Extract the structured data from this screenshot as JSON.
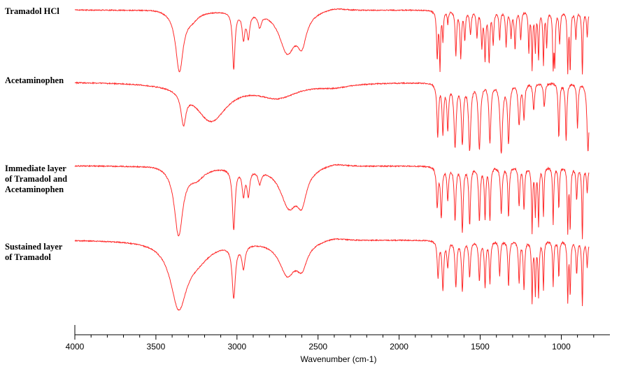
{
  "chart_data": {
    "type": "line",
    "title": "",
    "xlabel": "Wavenumber (cm-1)",
    "ylabel": "",
    "xlim": [
      4000,
      700
    ],
    "x_reversed": true,
    "grid": false,
    "line_color": "#ff2a2a",
    "x_ticks_major": [
      4000,
      3500,
      3000,
      2500,
      2000,
      1500,
      1000
    ],
    "x_tick_labels": [
      "4000",
      "3500",
      "3000",
      "2500",
      "2000",
      "1500",
      "1000"
    ],
    "series": [
      {
        "name": "Tramadol HCl",
        "label_lines": [
          "Tramadol HCl"
        ],
        "x_range": [
          4000,
          830
        ],
        "features": [
          [
            3800,
            0.0,
            40
          ],
          [
            3500,
            -0.02,
            80
          ],
          [
            3355,
            0.95,
            28
          ],
          [
            3280,
            0.12,
            50
          ],
          [
            3020,
            0.9,
            9
          ],
          [
            2960,
            0.4,
            10
          ],
          [
            2930,
            0.38,
            10
          ],
          [
            2860,
            0.2,
            12
          ],
          [
            2690,
            0.65,
            60
          ],
          [
            2600,
            0.45,
            35
          ],
          [
            2400,
            -0.05,
            90
          ],
          [
            1765,
            0.75,
            5
          ],
          [
            1748,
            0.9,
            4
          ],
          [
            1730,
            0.45,
            4
          ],
          [
            1700,
            0.2,
            4
          ],
          [
            1650,
            0.7,
            5
          ],
          [
            1620,
            0.75,
            5
          ],
          [
            1595,
            0.45,
            5
          ],
          [
            1560,
            0.35,
            6
          ],
          [
            1520,
            0.4,
            5
          ],
          [
            1490,
            0.55,
            5
          ],
          [
            1470,
            0.75,
            5
          ],
          [
            1445,
            0.8,
            5
          ],
          [
            1420,
            0.5,
            5
          ],
          [
            1380,
            0.45,
            5
          ],
          [
            1340,
            0.55,
            5
          ],
          [
            1310,
            0.4,
            5
          ],
          [
            1285,
            0.6,
            5
          ],
          [
            1250,
            0.45,
            5
          ],
          [
            1200,
            0.65,
            4
          ],
          [
            1180,
            0.9,
            4
          ],
          [
            1160,
            0.6,
            4
          ],
          [
            1140,
            0.75,
            4
          ],
          [
            1110,
            0.85,
            4
          ],
          [
            1090,
            0.55,
            4
          ],
          [
            1050,
            0.85,
            4
          ],
          [
            1040,
            0.8,
            4
          ],
          [
            1010,
            0.5,
            5
          ],
          [
            960,
            0.95,
            4
          ],
          [
            945,
            0.92,
            4
          ],
          [
            910,
            0.45,
            5
          ],
          [
            870,
            1.0,
            4
          ],
          [
            840,
            0.4,
            5
          ]
        ]
      },
      {
        "name": "Acetaminophen",
        "label_lines": [
          "Acetaminophen"
        ],
        "x_range": [
          4000,
          830
        ],
        "features": [
          [
            3330,
            0.45,
            18
          ],
          [
            3160,
            0.55,
            120
          ],
          [
            2750,
            0.2,
            150
          ],
          [
            2400,
            0.05,
            120
          ],
          [
            1762,
            0.75,
            6
          ],
          [
            1730,
            0.7,
            6
          ],
          [
            1700,
            0.65,
            6
          ],
          [
            1655,
            0.9,
            8
          ],
          [
            1610,
            0.85,
            7
          ],
          [
            1565,
            0.95,
            8
          ],
          [
            1505,
            0.95,
            8
          ],
          [
            1440,
            0.85,
            7
          ],
          [
            1370,
            1.0,
            9
          ],
          [
            1325,
            0.85,
            7
          ],
          [
            1260,
            0.6,
            7
          ],
          [
            1230,
            0.5,
            6
          ],
          [
            1170,
            0.4,
            6
          ],
          [
            1105,
            0.35,
            6
          ],
          [
            1015,
            0.8,
            5
          ],
          [
            970,
            0.85,
            5
          ],
          [
            900,
            0.65,
            5
          ],
          [
            835,
            1.0,
            8
          ]
        ]
      },
      {
        "name": "Immediate layer of Tramadol and Acetaminophen",
        "label_lines": [
          "Immediate layer",
          "of Tramadol and",
          "Acetaminophen"
        ],
        "x_range": [
          4000,
          830
        ],
        "features": [
          [
            3800,
            0.0,
            40
          ],
          [
            3500,
            -0.02,
            80
          ],
          [
            3360,
            0.95,
            32
          ],
          [
            3250,
            0.15,
            60
          ],
          [
            3020,
            0.85,
            10
          ],
          [
            2960,
            0.35,
            10
          ],
          [
            2930,
            0.35,
            10
          ],
          [
            2860,
            0.18,
            12
          ],
          [
            2680,
            0.55,
            65
          ],
          [
            2600,
            0.4,
            35
          ],
          [
            2400,
            -0.05,
            90
          ],
          [
            1765,
            0.55,
            6
          ],
          [
            1740,
            0.7,
            6
          ],
          [
            1700,
            0.45,
            6
          ],
          [
            1655,
            0.75,
            6
          ],
          [
            1610,
            0.9,
            6
          ],
          [
            1565,
            0.8,
            6
          ],
          [
            1505,
            0.75,
            6
          ],
          [
            1470,
            0.7,
            5
          ],
          [
            1440,
            0.75,
            5
          ],
          [
            1370,
            0.65,
            6
          ],
          [
            1325,
            0.7,
            5
          ],
          [
            1260,
            0.55,
            5
          ],
          [
            1230,
            0.6,
            5
          ],
          [
            1180,
            0.9,
            4
          ],
          [
            1160,
            0.65,
            4
          ],
          [
            1140,
            0.8,
            4
          ],
          [
            1110,
            0.7,
            4
          ],
          [
            1050,
            0.8,
            4
          ],
          [
            1015,
            0.6,
            4
          ],
          [
            960,
            0.9,
            4
          ],
          [
            945,
            0.85,
            4
          ],
          [
            905,
            0.45,
            5
          ],
          [
            870,
            1.0,
            4
          ],
          [
            840,
            0.35,
            5
          ]
        ]
      },
      {
        "name": "Sustained layer of Tramadol",
        "label_lines": [
          "Sustained layer",
          "of Tramadol"
        ],
        "x_range": [
          4000,
          830
        ],
        "features": [
          [
            3360,
            0.95,
            60
          ],
          [
            3250,
            0.25,
            110
          ],
          [
            3020,
            0.8,
            12
          ],
          [
            2960,
            0.35,
            12
          ],
          [
            2690,
            0.5,
            60
          ],
          [
            2600,
            0.35,
            40
          ],
          [
            2400,
            -0.05,
            90
          ],
          [
            1760,
            0.55,
            6
          ],
          [
            1730,
            0.75,
            6
          ],
          [
            1700,
            0.4,
            6
          ],
          [
            1650,
            0.7,
            6
          ],
          [
            1610,
            0.75,
            6
          ],
          [
            1565,
            0.55,
            6
          ],
          [
            1505,
            0.6,
            6
          ],
          [
            1470,
            0.7,
            5
          ],
          [
            1440,
            0.65,
            5
          ],
          [
            1380,
            0.55,
            5
          ],
          [
            1325,
            0.7,
            5
          ],
          [
            1260,
            0.65,
            5
          ],
          [
            1230,
            0.75,
            5
          ],
          [
            1180,
            0.95,
            4
          ],
          [
            1160,
            0.8,
            4
          ],
          [
            1140,
            0.85,
            4
          ],
          [
            1110,
            0.75,
            4
          ],
          [
            1050,
            0.7,
            4
          ],
          [
            1015,
            0.55,
            4
          ],
          [
            960,
            0.9,
            4
          ],
          [
            945,
            0.8,
            4
          ],
          [
            905,
            0.5,
            5
          ],
          [
            870,
            1.0,
            4
          ],
          [
            840,
            0.4,
            5
          ]
        ]
      }
    ]
  }
}
